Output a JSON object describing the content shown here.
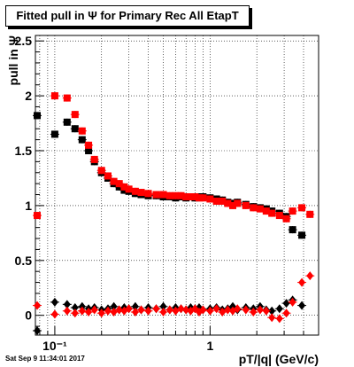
{
  "chart_data": {
    "type": "scatter",
    "title": "Fitted pull in Ψ  for Primary Rec All EtapT",
    "xlabel": "pT/|q| (GeV/c)",
    "ylabel": "pull in Ψ",
    "xscale": "log",
    "xlim": [
      0.075,
      5.0
    ],
    "ylim": [
      -0.18,
      2.55
    ],
    "grid": true,
    "x_ticks": [
      {
        "value": 0.1,
        "label": "10⁻¹"
      },
      {
        "value": 1,
        "label": "1"
      }
    ],
    "y_ticks": [
      0,
      0.5,
      1,
      1.5,
      2,
      2.5
    ],
    "series": [
      {
        "color": "#000000",
        "kind": "width",
        "points": [
          [
            0.077,
            1.82
          ],
          [
            0.1,
            1.65
          ],
          [
            0.12,
            1.76
          ],
          [
            0.135,
            1.7
          ],
          [
            0.15,
            1.6
          ],
          [
            0.165,
            1.5
          ],
          [
            0.18,
            1.4
          ],
          [
            0.2,
            1.3
          ],
          [
            0.22,
            1.25
          ],
          [
            0.24,
            1.2
          ],
          [
            0.26,
            1.17
          ],
          [
            0.28,
            1.14
          ],
          [
            0.3,
            1.13
          ],
          [
            0.33,
            1.11
          ],
          [
            0.36,
            1.1
          ],
          [
            0.4,
            1.09
          ],
          [
            0.45,
            1.09
          ],
          [
            0.5,
            1.08
          ],
          [
            0.55,
            1.08
          ],
          [
            0.6,
            1.07
          ],
          [
            0.65,
            1.08
          ],
          [
            0.7,
            1.07
          ],
          [
            0.75,
            1.08
          ],
          [
            0.8,
            1.07
          ],
          [
            0.85,
            1.08
          ],
          [
            0.9,
            1.08
          ],
          [
            1.0,
            1.07
          ],
          [
            1.1,
            1.06
          ],
          [
            1.2,
            1.05
          ],
          [
            1.3,
            1.03
          ],
          [
            1.4,
            1.02
          ],
          [
            1.5,
            1.03
          ],
          [
            1.7,
            1.01
          ],
          [
            1.9,
            0.99
          ],
          [
            2.1,
            0.98
          ],
          [
            2.3,
            0.97
          ],
          [
            2.5,
            0.95
          ],
          [
            2.8,
            0.93
          ],
          [
            3.1,
            0.9
          ],
          [
            3.4,
            0.78
          ],
          [
            3.9,
            0.73
          ]
        ]
      },
      {
        "color": "#ff0000",
        "kind": "width",
        "points": [
          [
            0.077,
            0.91
          ],
          [
            0.1,
            2.0
          ],
          [
            0.12,
            1.98
          ],
          [
            0.135,
            1.83
          ],
          [
            0.15,
            1.68
          ],
          [
            0.165,
            1.55
          ],
          [
            0.18,
            1.42
          ],
          [
            0.2,
            1.32
          ],
          [
            0.22,
            1.27
          ],
          [
            0.24,
            1.22
          ],
          [
            0.26,
            1.2
          ],
          [
            0.28,
            1.17
          ],
          [
            0.3,
            1.15
          ],
          [
            0.33,
            1.13
          ],
          [
            0.36,
            1.12
          ],
          [
            0.4,
            1.11
          ],
          [
            0.45,
            1.1
          ],
          [
            0.5,
            1.1
          ],
          [
            0.55,
            1.09
          ],
          [
            0.6,
            1.09
          ],
          [
            0.65,
            1.09
          ],
          [
            0.7,
            1.08
          ],
          [
            0.75,
            1.08
          ],
          [
            0.8,
            1.08
          ],
          [
            0.85,
            1.07
          ],
          [
            0.9,
            1.07
          ],
          [
            1.0,
            1.06
          ],
          [
            1.1,
            1.04
          ],
          [
            1.2,
            1.04
          ],
          [
            1.3,
            1.02
          ],
          [
            1.4,
            1.0
          ],
          [
            1.5,
            1.02
          ],
          [
            1.7,
            1.0
          ],
          [
            1.9,
            0.98
          ],
          [
            2.1,
            0.97
          ],
          [
            2.3,
            0.95
          ],
          [
            2.5,
            0.93
          ],
          [
            2.8,
            0.91
          ],
          [
            3.1,
            0.88
          ],
          [
            3.4,
            0.95
          ],
          [
            3.9,
            0.98
          ],
          [
            4.4,
            0.92
          ]
        ]
      },
      {
        "color": "#000000",
        "kind": "mean",
        "points": [
          [
            0.077,
            -0.14
          ],
          [
            0.1,
            0.12
          ],
          [
            0.12,
            0.1
          ],
          [
            0.135,
            0.07
          ],
          [
            0.15,
            0.08
          ],
          [
            0.165,
            0.06
          ],
          [
            0.18,
            0.07
          ],
          [
            0.2,
            0.05
          ],
          [
            0.22,
            0.06
          ],
          [
            0.24,
            0.08
          ],
          [
            0.26,
            0.05
          ],
          [
            0.28,
            0.07
          ],
          [
            0.3,
            0.06
          ],
          [
            0.33,
            0.08
          ],
          [
            0.36,
            0.05
          ],
          [
            0.4,
            0.07
          ],
          [
            0.45,
            0.06
          ],
          [
            0.5,
            0.08
          ],
          [
            0.55,
            0.05
          ],
          [
            0.6,
            0.07
          ],
          [
            0.65,
            0.06
          ],
          [
            0.7,
            0.05
          ],
          [
            0.75,
            0.07
          ],
          [
            0.8,
            0.06
          ],
          [
            0.85,
            0.07
          ],
          [
            0.9,
            0.05
          ],
          [
            1.0,
            0.06
          ],
          [
            1.1,
            0.07
          ],
          [
            1.2,
            0.05
          ],
          [
            1.3,
            0.06
          ],
          [
            1.4,
            0.08
          ],
          [
            1.5,
            0.05
          ],
          [
            1.7,
            0.07
          ],
          [
            1.9,
            0.06
          ],
          [
            2.1,
            0.08
          ],
          [
            2.3,
            0.05
          ],
          [
            2.5,
            0.04
          ],
          [
            2.8,
            0.06
          ],
          [
            3.1,
            0.11
          ],
          [
            3.4,
            0.14
          ],
          [
            3.9,
            0.09
          ]
        ]
      },
      {
        "color": "#ff0000",
        "kind": "mean",
        "points": [
          [
            0.077,
            0.09
          ],
          [
            0.1,
            0.01
          ],
          [
            0.12,
            0.04
          ],
          [
            0.135,
            0.02
          ],
          [
            0.15,
            0.04
          ],
          [
            0.165,
            0.03
          ],
          [
            0.18,
            0.05
          ],
          [
            0.2,
            0.02
          ],
          [
            0.22,
            0.04
          ],
          [
            0.24,
            0.03
          ],
          [
            0.26,
            0.05
          ],
          [
            0.28,
            0.04
          ],
          [
            0.3,
            0.06
          ],
          [
            0.33,
            0.03
          ],
          [
            0.36,
            0.05
          ],
          [
            0.4,
            0.04
          ],
          [
            0.45,
            0.06
          ],
          [
            0.5,
            0.03
          ],
          [
            0.55,
            0.05
          ],
          [
            0.6,
            0.04
          ],
          [
            0.65,
            0.06
          ],
          [
            0.7,
            0.05
          ],
          [
            0.75,
            0.04
          ],
          [
            0.8,
            0.06
          ],
          [
            0.85,
            0.03
          ],
          [
            0.9,
            0.05
          ],
          [
            1.0,
            0.04
          ],
          [
            1.1,
            0.06
          ],
          [
            1.2,
            0.03
          ],
          [
            1.3,
            0.05
          ],
          [
            1.4,
            0.04
          ],
          [
            1.5,
            0.06
          ],
          [
            1.7,
            0.05
          ],
          [
            1.9,
            0.03
          ],
          [
            2.1,
            0.05
          ],
          [
            2.3,
            0.04
          ],
          [
            2.5,
            -0.02
          ],
          [
            2.8,
            -0.03
          ],
          [
            3.1,
            0.02
          ],
          [
            3.4,
            0.12
          ],
          [
            3.9,
            0.3
          ],
          [
            4.4,
            0.36
          ]
        ]
      }
    ]
  },
  "footer": {
    "date": "Sat Sep  9 11:34:01 2017"
  }
}
